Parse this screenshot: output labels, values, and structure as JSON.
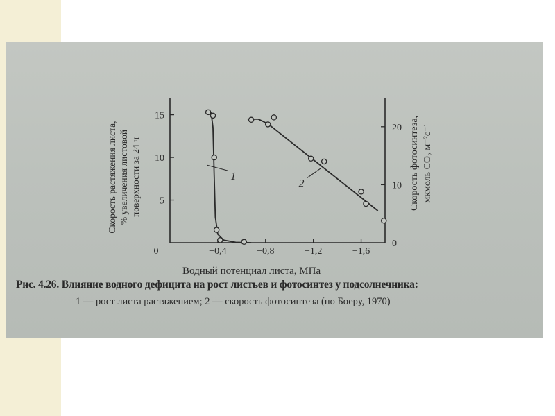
{
  "caption": {
    "line1": "Рис. 4.26. Влияние водного дефицита на рост листьев и фотосинтез у подсолнечника:",
    "line2": "1 — рост листа растяжением; 2 — скорость фотосинтеза (по Боеру, 1970)"
  },
  "colors": {
    "ink": "#2a2a2a",
    "photo_bg": "#bfc3be",
    "left_strip": "#f4efd6"
  },
  "chart_data": {
    "type": "line",
    "title": "",
    "xlabel": "Водный потенциал листа, МПа",
    "ylabel_left": [
      "Скорость растяжения листа,",
      "% увеличения листовой",
      "поверхности за 24 ч"
    ],
    "ylabel_right": [
      "Скорость фотосинтеза,",
      "мкмоль CO₂ м⁻²с⁻¹"
    ],
    "x_ticks": [
      {
        "value": 0,
        "label": "0"
      },
      {
        "value": -0.4,
        "label": "−0,4"
      },
      {
        "value": -0.8,
        "label": "−0,8"
      },
      {
        "value": -1.2,
        "label": "−1,2"
      },
      {
        "value": -1.6,
        "label": "−1,6"
      }
    ],
    "xlim": [
      0,
      -1.8
    ],
    "ylim_left": [
      0,
      17
    ],
    "ylim_right": [
      0,
      25
    ],
    "yticks_left": [
      0,
      5,
      10,
      15
    ],
    "yticks_right": [
      0,
      10,
      20
    ],
    "grid": false,
    "series": [
      {
        "name": "1",
        "axis": "left",
        "points": [
          {
            "x": -0.32,
            "y": 15.3
          },
          {
            "x": -0.36,
            "y": 14.9
          },
          {
            "x": -0.37,
            "y": 10.0
          },
          {
            "x": -0.39,
            "y": 1.5
          },
          {
            "x": -0.42,
            "y": 0.3
          },
          {
            "x": -0.62,
            "y": 0.1
          }
        ],
        "curve": [
          {
            "x": -0.3,
            "y": 15.5
          },
          {
            "x": -0.345,
            "y": 15.2
          },
          {
            "x": -0.36,
            "y": 13.5
          },
          {
            "x": -0.37,
            "y": 8.0
          },
          {
            "x": -0.38,
            "y": 3.0
          },
          {
            "x": -0.4,
            "y": 1.0
          },
          {
            "x": -0.45,
            "y": 0.3
          },
          {
            "x": -0.55,
            "y": 0.05
          },
          {
            "x": -0.68,
            "y": 0.0
          }
        ]
      },
      {
        "name": "2",
        "axis": "right",
        "points": [
          {
            "x": -0.68,
            "y": 21.2
          },
          {
            "x": -0.82,
            "y": 20.4
          },
          {
            "x": -0.87,
            "y": 21.6
          },
          {
            "x": -1.18,
            "y": 14.5
          },
          {
            "x": -1.29,
            "y": 14.0
          },
          {
            "x": -1.6,
            "y": 8.8
          },
          {
            "x": -1.64,
            "y": 6.7
          },
          {
            "x": -1.79,
            "y": 3.8
          }
        ],
        "curve": [
          {
            "x": -0.65,
            "y": 21.3
          },
          {
            "x": -0.74,
            "y": 21.3
          },
          {
            "x": -0.82,
            "y": 20.5
          },
          {
            "x": -1.74,
            "y": 5.5
          }
        ]
      }
    ],
    "series_labels": [
      {
        "series": "1",
        "text": "1",
        "x": -0.53,
        "y_left": 7.8
      },
      {
        "series": "2",
        "text": "2",
        "x": -1.1,
        "y_right": 10.2
      }
    ]
  }
}
